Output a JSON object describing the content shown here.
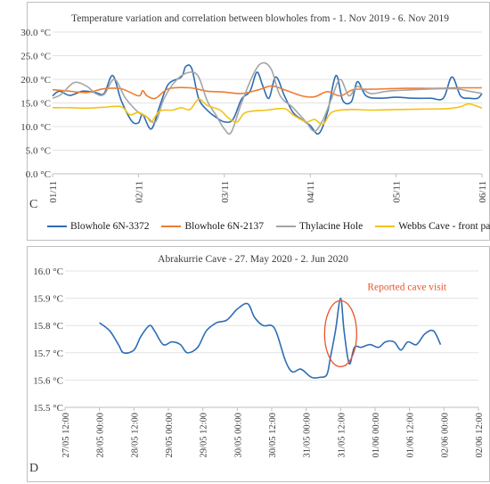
{
  "chart_data": [
    {
      "type": "line",
      "panel_letter": "C",
      "title": "Temperature variation and correlation between blowholes from - 1. Nov 2019 - 6. Nov 2019",
      "xlabel": "",
      "ylabel": "",
      "x_tick_labels": [
        "01/11",
        "02/11",
        "03/11",
        "04/11",
        "05/11",
        "06/11"
      ],
      "x_range": [
        0,
        5
      ],
      "y_tick_labels": [
        "0.0 °C",
        "5.0 °C",
        "10.0 °C",
        "15.0 °C",
        "20.0 °C",
        "25.0 °C",
        "30.0 °C"
      ],
      "ylim": [
        0,
        30
      ],
      "grid": true,
      "legend_position": "bottom",
      "series": [
        {
          "name": "Blowhole 6N-3372",
          "color": "#2e6db4",
          "points": [
            [
              0,
              16.5
            ],
            [
              0.08,
              17.5
            ],
            [
              0.2,
              16.6
            ],
            [
              0.35,
              17.5
            ],
            [
              0.5,
              17.2
            ],
            [
              0.6,
              17.0
            ],
            [
              0.7,
              20.8
            ],
            [
              0.8,
              15.5
            ],
            [
              0.92,
              11.2
            ],
            [
              1.0,
              10.8
            ],
            [
              1.05,
              12.5
            ],
            [
              1.15,
              9.5
            ],
            [
              1.25,
              14.5
            ],
            [
              1.35,
              19.0
            ],
            [
              1.5,
              20.5
            ],
            [
              1.55,
              22.7
            ],
            [
              1.62,
              22.3
            ],
            [
              1.7,
              16.0
            ],
            [
              1.8,
              13.5
            ],
            [
              1.9,
              12.0
            ],
            [
              2.0,
              11.0
            ],
            [
              2.1,
              11.5
            ],
            [
              2.2,
              15.8
            ],
            [
              2.3,
              17.5
            ],
            [
              2.38,
              21.5
            ],
            [
              2.45,
              18.5
            ],
            [
              2.52,
              16.0
            ],
            [
              2.6,
              20.5
            ],
            [
              2.7,
              16.5
            ],
            [
              2.8,
              13.0
            ],
            [
              2.9,
              11.5
            ],
            [
              3.0,
              10.2
            ],
            [
              3.1,
              8.5
            ],
            [
              3.2,
              13.0
            ],
            [
              3.3,
              20.8
            ],
            [
              3.38,
              15.5
            ],
            [
              3.48,
              15.3
            ],
            [
              3.55,
              19.5
            ],
            [
              3.65,
              16.5
            ],
            [
              3.8,
              16.0
            ],
            [
              4.0,
              16.2
            ],
            [
              4.2,
              16.0
            ],
            [
              4.4,
              16.0
            ],
            [
              4.55,
              16.0
            ],
            [
              4.65,
              20.5
            ],
            [
              4.75,
              16.5
            ],
            [
              4.85,
              16.0
            ],
            [
              4.95,
              16.0
            ],
            [
              5.0,
              17.0
            ]
          ]
        },
        {
          "name": "Blowhole 6N-2137",
          "color": "#ed7d31",
          "points": [
            [
              0,
              17.8
            ],
            [
              0.2,
              17.5
            ],
            [
              0.4,
              17.2
            ],
            [
              0.6,
              18.0
            ],
            [
              0.8,
              18.0
            ],
            [
              1.0,
              16.5
            ],
            [
              1.05,
              17.6
            ],
            [
              1.1,
              16.5
            ],
            [
              1.2,
              16.0
            ],
            [
              1.35,
              18.0
            ],
            [
              1.6,
              18.2
            ],
            [
              1.8,
              17.5
            ],
            [
              2.0,
              17.3
            ],
            [
              2.2,
              17.0
            ],
            [
              2.4,
              17.8
            ],
            [
              2.55,
              18.6
            ],
            [
              2.7,
              17.8
            ],
            [
              2.9,
              16.5
            ],
            [
              3.05,
              16.3
            ],
            [
              3.2,
              17.4
            ],
            [
              3.35,
              16.5
            ],
            [
              3.5,
              17.8
            ],
            [
              3.7,
              17.9
            ],
            [
              3.9,
              18.0
            ],
            [
              4.1,
              18.1
            ],
            [
              4.3,
              18.1
            ],
            [
              4.5,
              18.1
            ],
            [
              4.7,
              18.2
            ],
            [
              4.9,
              18.2
            ],
            [
              5.0,
              18.2
            ]
          ]
        },
        {
          "name": "Thylacine Hole",
          "color": "#a5a5a5",
          "points": [
            [
              0,
              16.0
            ],
            [
              0.1,
              16.8
            ],
            [
              0.25,
              19.3
            ],
            [
              0.4,
              18.5
            ],
            [
              0.5,
              17.0
            ],
            [
              0.6,
              16.8
            ],
            [
              0.72,
              20.0
            ],
            [
              0.85,
              16.0
            ],
            [
              1.0,
              13.0
            ],
            [
              1.1,
              12.0
            ],
            [
              1.2,
              11.0
            ],
            [
              1.3,
              16.0
            ],
            [
              1.45,
              20.0
            ],
            [
              1.6,
              21.5
            ],
            [
              1.7,
              20.5
            ],
            [
              1.8,
              15.5
            ],
            [
              1.9,
              12.5
            ],
            [
              2.0,
              9.5
            ],
            [
              2.08,
              8.8
            ],
            [
              2.2,
              15.0
            ],
            [
              2.35,
              21.5
            ],
            [
              2.45,
              23.5
            ],
            [
              2.55,
              22.0
            ],
            [
              2.65,
              16.5
            ],
            [
              2.8,
              14.0
            ],
            [
              2.95,
              11.0
            ],
            [
              3.05,
              9.0
            ],
            [
              3.15,
              11.5
            ],
            [
              3.25,
              16.0
            ],
            [
              3.35,
              20.0
            ],
            [
              3.45,
              16.5
            ],
            [
              3.55,
              18.5
            ],
            [
              3.7,
              17.0
            ],
            [
              3.9,
              17.5
            ],
            [
              4.2,
              17.8
            ],
            [
              4.5,
              18.0
            ],
            [
              4.7,
              18.0
            ],
            [
              4.85,
              17.5
            ],
            [
              5.0,
              17.0
            ]
          ]
        },
        {
          "name": "Webbs Cave - front part",
          "color": "#f2c316",
          "points": [
            [
              0,
              14.0
            ],
            [
              0.2,
              14.0
            ],
            [
              0.4,
              13.9
            ],
            [
              0.6,
              14.1
            ],
            [
              0.8,
              14.2
            ],
            [
              0.9,
              12.5
            ],
            [
              1.0,
              13.0
            ],
            [
              1.1,
              12.0
            ],
            [
              1.15,
              11.0
            ],
            [
              1.25,
              13.3
            ],
            [
              1.4,
              13.5
            ],
            [
              1.5,
              14.0
            ],
            [
              1.6,
              13.6
            ],
            [
              1.7,
              15.8
            ],
            [
              1.8,
              14.5
            ],
            [
              1.95,
              13.5
            ],
            [
              2.05,
              11.8
            ],
            [
              2.15,
              11.0
            ],
            [
              2.25,
              13.0
            ],
            [
              2.5,
              13.5
            ],
            [
              2.7,
              13.8
            ],
            [
              2.8,
              12.5
            ],
            [
              2.95,
              11.0
            ],
            [
              3.05,
              11.5
            ],
            [
              3.15,
              10.5
            ],
            [
              3.25,
              13.0
            ],
            [
              3.45,
              13.6
            ],
            [
              3.7,
              13.5
            ],
            [
              4.0,
              13.6
            ],
            [
              4.3,
              13.7
            ],
            [
              4.6,
              13.8
            ],
            [
              4.75,
              14.2
            ],
            [
              4.85,
              14.8
            ],
            [
              5.0,
              13.9
            ]
          ]
        }
      ]
    },
    {
      "type": "line",
      "panel_letter": "D",
      "title": "Abrakurrie Cave - 27. May 2020 - 2. Jun 2020",
      "xlabel": "",
      "ylabel": "",
      "x_tick_labels": [
        "27/05 12:00",
        "28/05 00:00",
        "28/05 12:00",
        "29/05 00:00",
        "29/05 12:00",
        "30/05 00:00",
        "30/05 12:00",
        "31/05 00:00",
        "31/05 12:00",
        "01/06 00:00",
        "01/06 12:00",
        "02/06 00:00",
        "02/06 12:00"
      ],
      "x_range": [
        0,
        12
      ],
      "y_tick_labels": [
        "15.5 °C",
        "15.6 °C",
        "15.7 °C",
        "15.8 °C",
        "15.9 °C",
        "16.0 °C"
      ],
      "ylim": [
        15.5,
        16.0
      ],
      "grid": true,
      "annotation": {
        "text": "Reported cave visit",
        "color": "#e8552b",
        "x": 8.0,
        "y": 15.77
      },
      "series": [
        {
          "color": "#2e6db4",
          "points": [
            [
              1.0,
              15.81
            ],
            [
              1.3,
              15.78
            ],
            [
              1.55,
              15.73
            ],
            [
              1.7,
              15.7
            ],
            [
              2.0,
              15.71
            ],
            [
              2.2,
              15.76
            ],
            [
              2.45,
              15.8
            ],
            [
              2.6,
              15.78
            ],
            [
              2.85,
              15.73
            ],
            [
              3.1,
              15.74
            ],
            [
              3.35,
              15.73
            ],
            [
              3.55,
              15.7
            ],
            [
              3.85,
              15.72
            ],
            [
              4.1,
              15.78
            ],
            [
              4.4,
              15.81
            ],
            [
              4.7,
              15.82
            ],
            [
              5.0,
              15.86
            ],
            [
              5.3,
              15.88
            ],
            [
              5.5,
              15.83
            ],
            [
              5.75,
              15.8
            ],
            [
              6.0,
              15.8
            ],
            [
              6.15,
              15.77
            ],
            [
              6.4,
              15.67
            ],
            [
              6.6,
              15.63
            ],
            [
              6.85,
              15.64
            ],
            [
              7.15,
              15.61
            ],
            [
              7.4,
              15.61
            ],
            [
              7.6,
              15.62
            ],
            [
              7.7,
              15.68
            ],
            [
              7.85,
              15.78
            ],
            [
              8.0,
              15.9
            ],
            [
              8.1,
              15.78
            ],
            [
              8.25,
              15.66
            ],
            [
              8.4,
              15.72
            ],
            [
              8.6,
              15.72
            ],
            [
              8.85,
              15.73
            ],
            [
              9.1,
              15.72
            ],
            [
              9.3,
              15.74
            ],
            [
              9.55,
              15.74
            ],
            [
              9.75,
              15.71
            ],
            [
              9.95,
              15.74
            ],
            [
              10.2,
              15.73
            ],
            [
              10.45,
              15.77
            ],
            [
              10.7,
              15.78
            ],
            [
              10.9,
              15.73
            ]
          ]
        }
      ]
    }
  ]
}
